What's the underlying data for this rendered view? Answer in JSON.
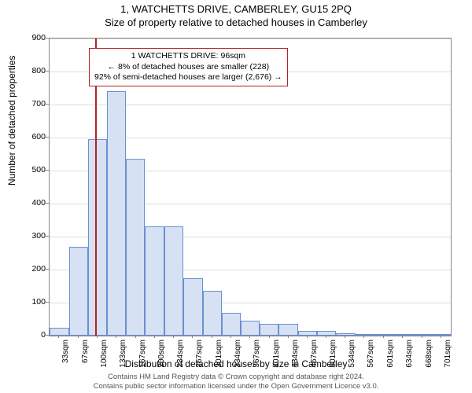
{
  "title_main": "1, WATCHETTS DRIVE, CAMBERLEY, GU15 2PQ",
  "title_sub": "Size of property relative to detached houses in Camberley",
  "y_axis_label": "Number of detached properties",
  "x_axis_label": "Distribution of detached houses by size in Camberley",
  "footer_line1": "Contains HM Land Registry data © Crown copyright and database right 2024.",
  "footer_line2": "Contains public sector information licensed under the Open Government Licence v3.0.",
  "annot_line1": "1 WATCHETTS DRIVE: 96sqm",
  "annot_line2": "← 8% of detached houses are smaller (228)",
  "annot_line3": "92% of semi-detached houses are larger (2,676) →",
  "chart": {
    "type": "histogram",
    "ylim": [
      0,
      900
    ],
    "ytick_step": 100,
    "xlim": [
      16,
      718
    ],
    "bar_fill": "#d6e1f4",
    "bar_stroke": "#6a8fd1",
    "background_color": "#ffffff",
    "grid_color": "#dddddd",
    "marker_color": "#b22222",
    "marker_x": 96,
    "title_fontsize": 13,
    "label_fontsize": 12,
    "tick_fontsize": 10.5,
    "x_categories": [
      "33sqm",
      "67sqm",
      "100sqm",
      "133sqm",
      "167sqm",
      "200sqm",
      "234sqm",
      "267sqm",
      "301sqm",
      "334sqm",
      "367sqm",
      "401sqm",
      "434sqm",
      "467sqm",
      "501sqm",
      "534sqm",
      "567sqm",
      "601sqm",
      "634sqm",
      "668sqm",
      "701sqm"
    ],
    "x_tick_values": [
      33,
      67,
      100,
      133,
      167,
      200,
      234,
      267,
      301,
      334,
      367,
      401,
      434,
      467,
      501,
      534,
      567,
      601,
      634,
      668,
      701
    ],
    "bars": [
      {
        "x0": 16,
        "x1": 50,
        "y": 25
      },
      {
        "x0": 50,
        "x1": 83,
        "y": 270
      },
      {
        "x0": 83,
        "x1": 117,
        "y": 595
      },
      {
        "x0": 117,
        "x1": 150,
        "y": 740
      },
      {
        "x0": 150,
        "x1": 183,
        "y": 535
      },
      {
        "x0": 183,
        "x1": 217,
        "y": 330
      },
      {
        "x0": 217,
        "x1": 250,
        "y": 330
      },
      {
        "x0": 250,
        "x1": 284,
        "y": 175
      },
      {
        "x0": 284,
        "x1": 317,
        "y": 135
      },
      {
        "x0": 317,
        "x1": 351,
        "y": 70
      },
      {
        "x0": 351,
        "x1": 384,
        "y": 45
      },
      {
        "x0": 384,
        "x1": 417,
        "y": 35
      },
      {
        "x0": 417,
        "x1": 451,
        "y": 35
      },
      {
        "x0": 451,
        "x1": 484,
        "y": 15
      },
      {
        "x0": 484,
        "x1": 517,
        "y": 15
      },
      {
        "x0": 517,
        "x1": 551,
        "y": 8
      },
      {
        "x0": 551,
        "x1": 584,
        "y": 5
      },
      {
        "x0": 584,
        "x1": 618,
        "y": 3
      },
      {
        "x0": 618,
        "x1": 651,
        "y": 3
      },
      {
        "x0": 651,
        "x1": 684,
        "y": 1
      },
      {
        "x0": 684,
        "x1": 718,
        "y": 2
      }
    ]
  }
}
